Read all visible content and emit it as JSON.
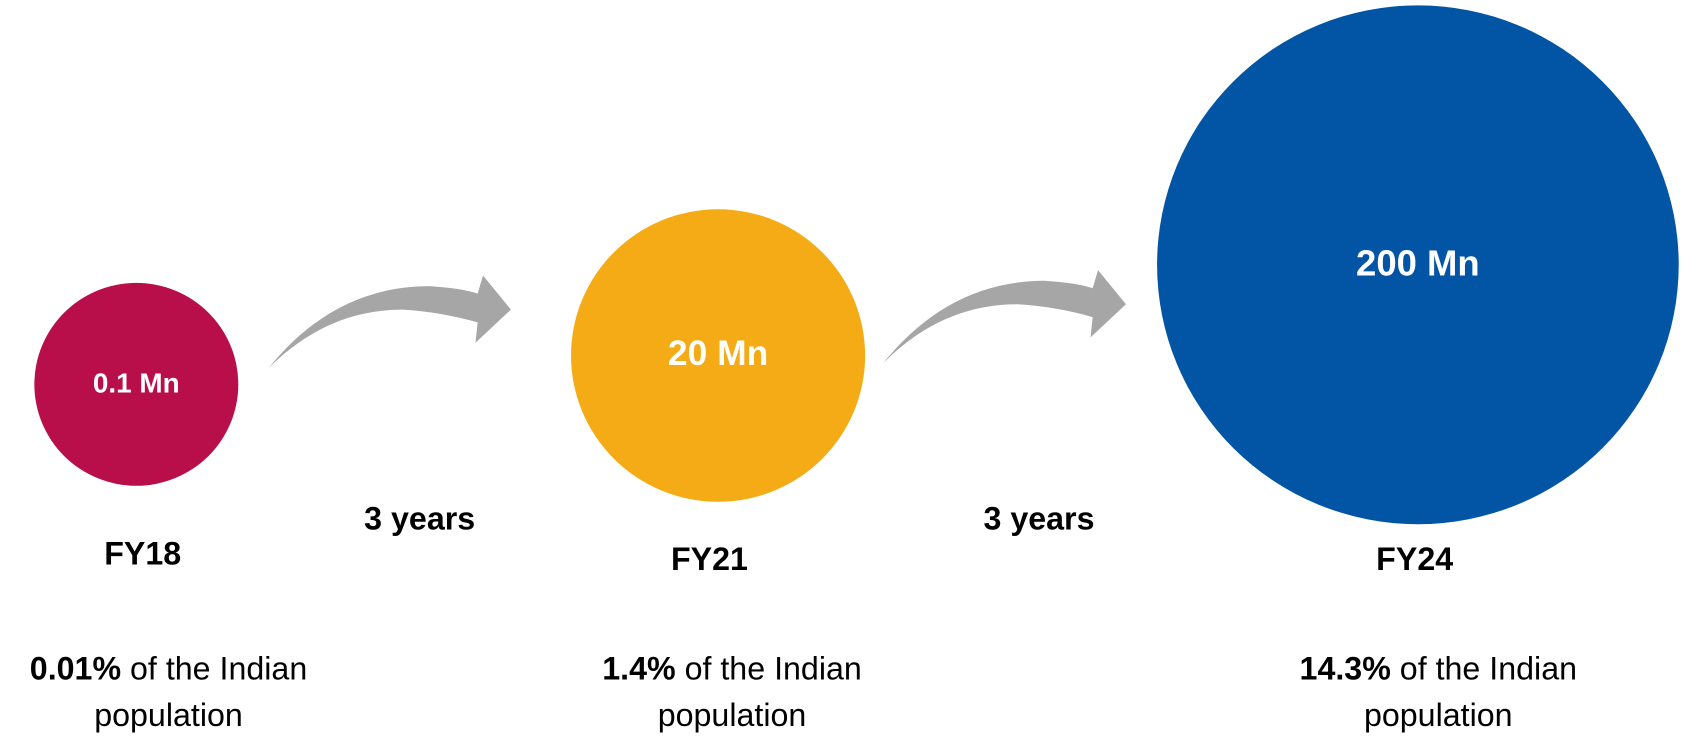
{
  "items": [
    {
      "value": "0.1 Mn",
      "year": "FY18",
      "share": "0.01%",
      "desc_line1": "of the Indian",
      "desc_line2": "population"
    },
    {
      "value": "20 Mn",
      "year": "FY21",
      "share": "1.4%",
      "desc_line1": "of the Indian",
      "desc_line2": "population"
    },
    {
      "value": "200 Mn",
      "year": "FY24",
      "share": "14.3%",
      "desc_line1": "of the Indian",
      "desc_line2": "population"
    }
  ],
  "arrows": [
    {
      "label": "3 years"
    },
    {
      "label": "3 years"
    }
  ]
}
